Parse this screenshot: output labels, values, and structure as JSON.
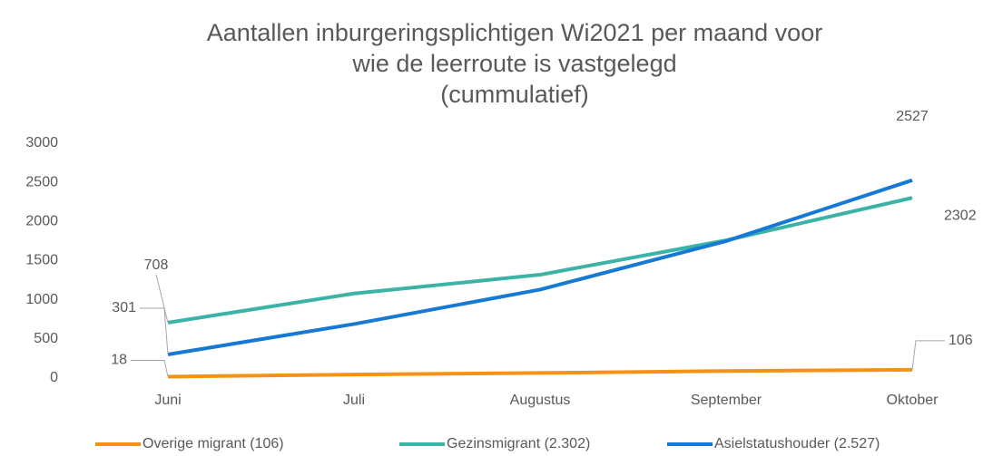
{
  "chart_data": {
    "type": "line",
    "title": [
      "Aantallen inburgeringsplichtigen Wi2021 per maand voor",
      "wie de leerroute is vastgelegd",
      "(cummulatief)"
    ],
    "categories": [
      "Juni",
      "Juli",
      "Augustus",
      "September",
      "Oktober"
    ],
    "series": [
      {
        "name": "Overige migrant (106)",
        "color": "#f39217",
        "values": [
          18,
          45,
          65,
          90,
          106
        ],
        "value_labels": [
          "18",
          null,
          null,
          null,
          "106"
        ]
      },
      {
        "name": "Gezinsmigrant (2.302)",
        "color": "#3bb3a6",
        "values": [
          708,
          1080,
          1320,
          1760,
          2302
        ],
        "value_labels": [
          "708",
          null,
          null,
          null,
          "2302"
        ]
      },
      {
        "name": "Asielstatushouder (2.527)",
        "color": "#1679d3",
        "values": [
          301,
          690,
          1130,
          1750,
          2527
        ],
        "value_labels": [
          "301",
          null,
          null,
          null,
          "2527"
        ]
      }
    ],
    "ylim": [
      0,
      3000
    ],
    "yticks": [
      0,
      500,
      1000,
      1500,
      2000,
      2500,
      3000
    ],
    "grid": false,
    "legend": "bottom"
  }
}
